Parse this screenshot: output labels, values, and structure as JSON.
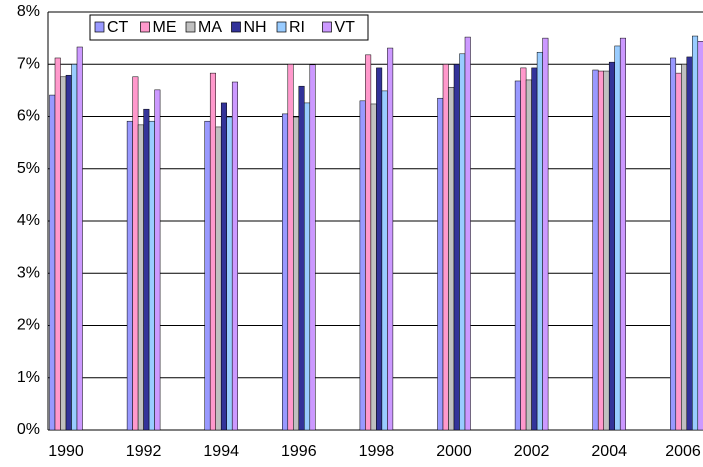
{
  "chart_data": {
    "type": "bar",
    "categories": [
      "1990",
      "1992",
      "1994",
      "1996",
      "1998",
      "2000",
      "2002",
      "2004",
      "2006"
    ],
    "series": [
      {
        "name": "CT",
        "color": "#9999ff",
        "values": [
          6.41,
          5.91,
          5.91,
          6.05,
          6.3,
          6.35,
          6.68,
          6.89,
          7.12
        ]
      },
      {
        "name": "ME",
        "color": "#ff99cc",
        "values": [
          7.12,
          6.76,
          6.83,
          7.0,
          7.18,
          7.0,
          6.93,
          6.87,
          6.83
        ]
      },
      {
        "name": "MA",
        "color": "#c0c0c0",
        "values": [
          6.76,
          5.84,
          5.8,
          5.99,
          6.24,
          6.56,
          6.7,
          6.87,
          7.0
        ]
      },
      {
        "name": "NH",
        "color": "#333399",
        "values": [
          6.79,
          6.14,
          6.26,
          6.58,
          6.93,
          7.0,
          6.93,
          7.04,
          7.14
        ]
      },
      {
        "name": "RI",
        "color": "#99ccff",
        "values": [
          7.0,
          5.91,
          5.99,
          6.26,
          6.49,
          7.2,
          7.23,
          7.35,
          7.54
        ]
      },
      {
        "name": "VT",
        "color": "#cc99ff",
        "values": [
          7.33,
          6.51,
          6.66,
          6.99,
          7.31,
          7.52,
          7.5,
          7.5,
          7.44
        ]
      }
    ],
    "ylim": [
      0,
      8
    ],
    "yticks": [
      {
        "value": 0,
        "label": "0%"
      },
      {
        "value": 1,
        "label": "1%"
      },
      {
        "value": 2,
        "label": "2%"
      },
      {
        "value": 3,
        "label": "3%"
      },
      {
        "value": 4,
        "label": "4%"
      },
      {
        "value": 5,
        "label": "5%"
      },
      {
        "value": 6,
        "label": "6%"
      },
      {
        "value": 7,
        "label": "7%"
      },
      {
        "value": 8,
        "label": "8%"
      }
    ],
    "grid": true,
    "legend": "top"
  }
}
